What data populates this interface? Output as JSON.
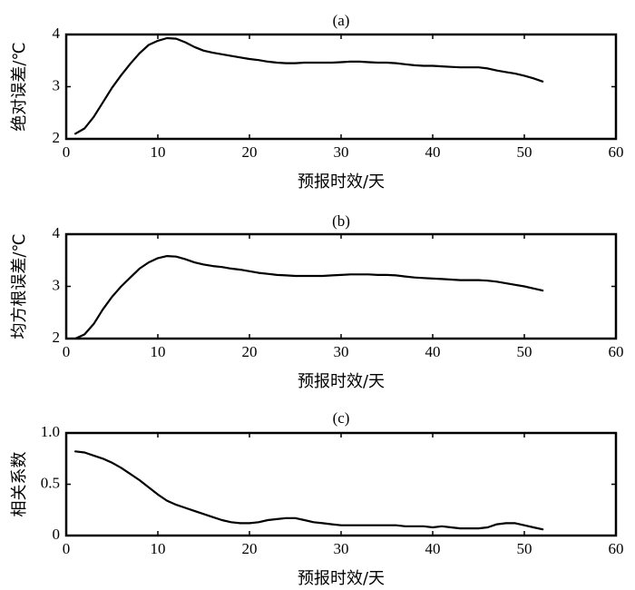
{
  "chart_data": [
    {
      "type": "line",
      "title": "(a)",
      "xlabel": "预报时效/天",
      "ylabel": "绝对误差/℃",
      "xlim": [
        0,
        60
      ],
      "ylim": [
        2,
        4
      ],
      "xticks": [
        "0",
        "10",
        "20",
        "30",
        "40",
        "50",
        "60"
      ],
      "yticks": [
        "2",
        "3",
        "4"
      ],
      "grid": false,
      "series": [
        {
          "x": [
            1,
            2,
            3,
            4,
            5,
            6,
            7,
            8,
            9,
            10,
            11,
            12,
            13,
            14,
            15,
            16,
            17,
            18,
            19,
            20,
            21,
            22,
            23,
            24,
            25,
            26,
            27,
            28,
            29,
            30,
            31,
            32,
            33,
            34,
            35,
            36,
            37,
            38,
            39,
            40,
            41,
            42,
            43,
            44,
            45,
            46,
            47,
            48,
            49,
            50,
            51,
            52
          ],
          "values": [
            2.1,
            2.2,
            2.42,
            2.7,
            2.98,
            3.22,
            3.44,
            3.64,
            3.8,
            3.88,
            3.93,
            3.92,
            3.85,
            3.76,
            3.69,
            3.65,
            3.62,
            3.59,
            3.56,
            3.53,
            3.51,
            3.48,
            3.46,
            3.45,
            3.45,
            3.46,
            3.46,
            3.46,
            3.46,
            3.47,
            3.48,
            3.48,
            3.47,
            3.46,
            3.46,
            3.45,
            3.43,
            3.41,
            3.4,
            3.4,
            3.39,
            3.38,
            3.37,
            3.37,
            3.37,
            3.35,
            3.31,
            3.28,
            3.25,
            3.21,
            3.16,
            3.1
          ]
        }
      ]
    },
    {
      "type": "line",
      "title": "(b)",
      "xlabel": "预报时效/天",
      "ylabel": "均方根误差/℃",
      "xlim": [
        0,
        60
      ],
      "ylim": [
        2,
        4
      ],
      "xticks": [
        "0",
        "10",
        "20",
        "30",
        "40",
        "50",
        "60"
      ],
      "yticks": [
        "2",
        "3",
        "4"
      ],
      "grid": false,
      "series": [
        {
          "x": [
            1,
            2,
            3,
            4,
            5,
            6,
            7,
            8,
            9,
            10,
            11,
            12,
            13,
            14,
            15,
            16,
            17,
            18,
            19,
            20,
            21,
            22,
            23,
            24,
            25,
            26,
            27,
            28,
            29,
            30,
            31,
            32,
            33,
            34,
            35,
            36,
            37,
            38,
            39,
            40,
            41,
            42,
            43,
            44,
            45,
            46,
            47,
            48,
            49,
            50,
            51,
            52
          ],
          "values": [
            2.0,
            2.08,
            2.28,
            2.56,
            2.8,
            3.0,
            3.17,
            3.34,
            3.46,
            3.54,
            3.58,
            3.57,
            3.52,
            3.46,
            3.42,
            3.39,
            3.37,
            3.34,
            3.32,
            3.29,
            3.26,
            3.24,
            3.22,
            3.21,
            3.2,
            3.2,
            3.2,
            3.2,
            3.21,
            3.22,
            3.23,
            3.23,
            3.23,
            3.22,
            3.22,
            3.21,
            3.19,
            3.17,
            3.16,
            3.15,
            3.14,
            3.13,
            3.12,
            3.12,
            3.12,
            3.11,
            3.09,
            3.06,
            3.03,
            3.0,
            2.96,
            2.92
          ]
        }
      ]
    },
    {
      "type": "line",
      "title": "(c)",
      "xlabel": "预报时效/天",
      "ylabel": "相关系数",
      "xlim": [
        0,
        60
      ],
      "ylim": [
        0,
        1.0
      ],
      "xticks": [
        "0",
        "10",
        "20",
        "30",
        "40",
        "50",
        "60"
      ],
      "yticks": [
        "0",
        "0.5",
        "1.0"
      ],
      "grid": false,
      "series": [
        {
          "x": [
            1,
            2,
            3,
            4,
            5,
            6,
            7,
            8,
            9,
            10,
            11,
            12,
            13,
            14,
            15,
            16,
            17,
            18,
            19,
            20,
            21,
            22,
            23,
            24,
            25,
            26,
            27,
            28,
            29,
            30,
            31,
            32,
            33,
            34,
            35,
            36,
            37,
            38,
            39,
            40,
            41,
            42,
            43,
            44,
            45,
            46,
            47,
            48,
            49,
            50,
            51,
            52
          ],
          "values": [
            0.82,
            0.81,
            0.78,
            0.75,
            0.71,
            0.66,
            0.6,
            0.54,
            0.47,
            0.4,
            0.34,
            0.3,
            0.27,
            0.24,
            0.21,
            0.18,
            0.15,
            0.13,
            0.12,
            0.12,
            0.13,
            0.15,
            0.16,
            0.17,
            0.17,
            0.15,
            0.13,
            0.12,
            0.11,
            0.1,
            0.1,
            0.1,
            0.1,
            0.1,
            0.1,
            0.1,
            0.09,
            0.09,
            0.09,
            0.08,
            0.09,
            0.08,
            0.07,
            0.07,
            0.07,
            0.08,
            0.11,
            0.12,
            0.12,
            0.1,
            0.08,
            0.06
          ]
        }
      ]
    }
  ]
}
